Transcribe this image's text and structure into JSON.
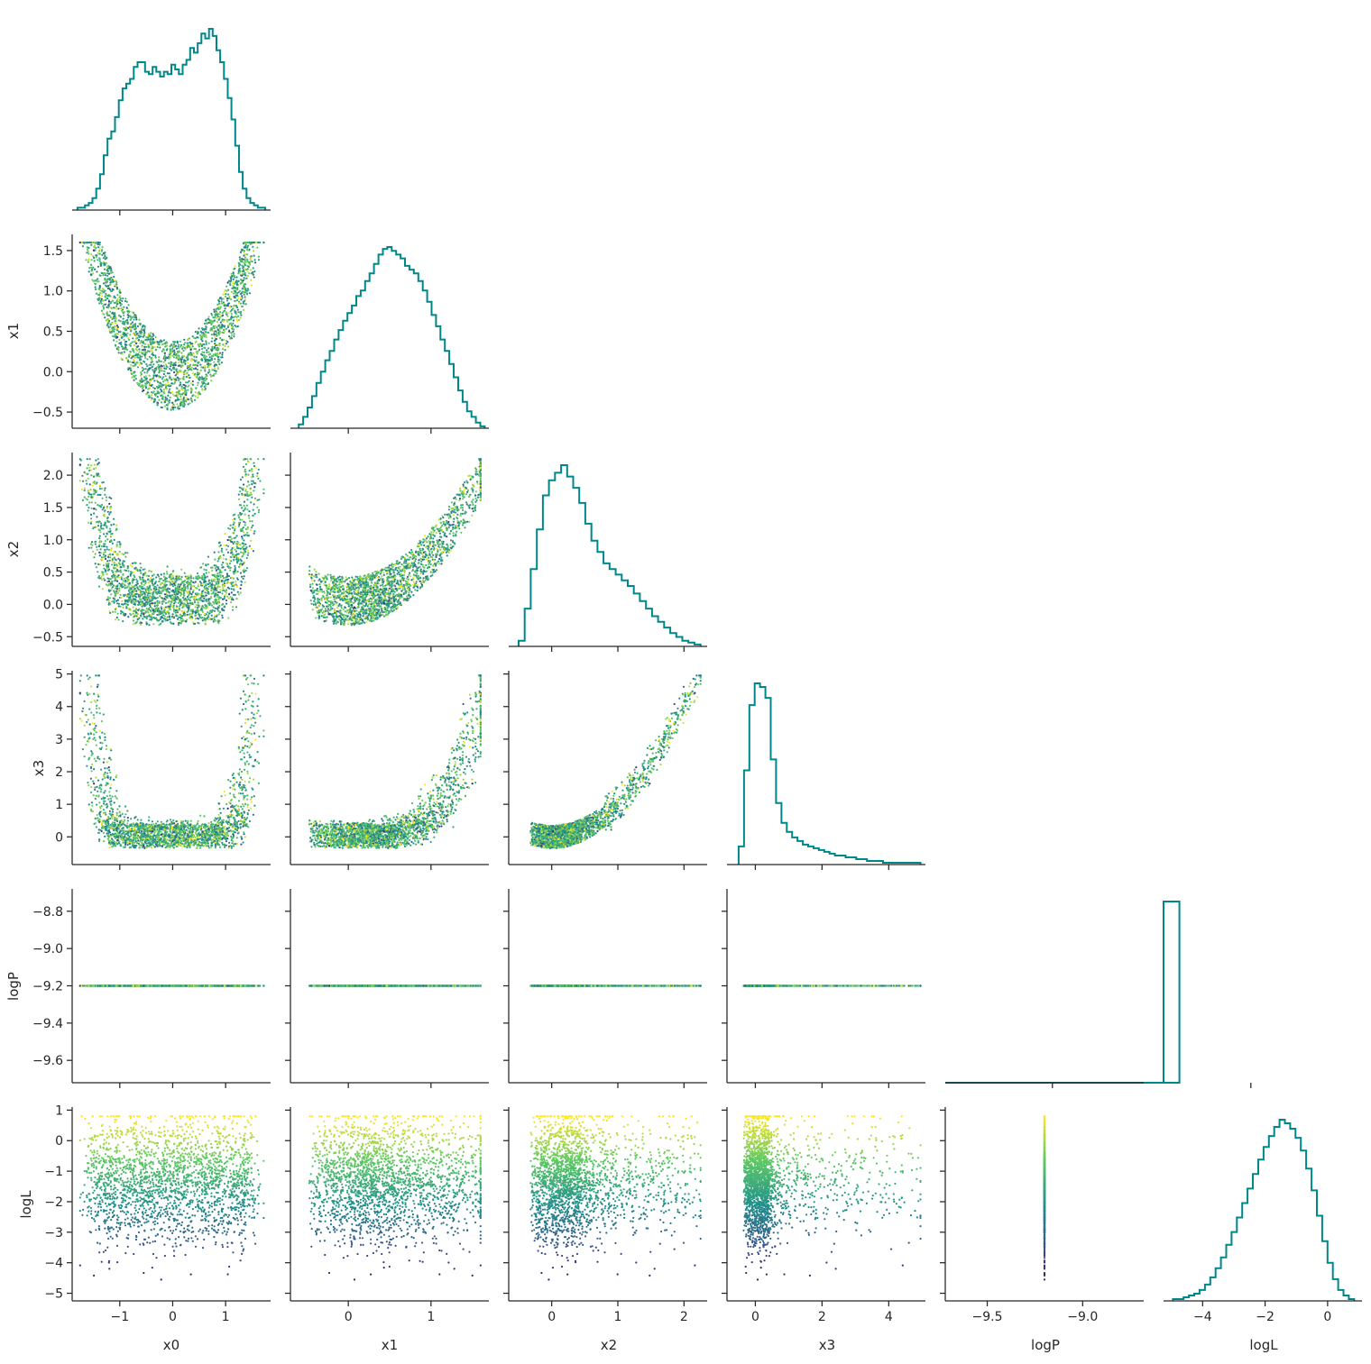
{
  "chart_data": {
    "type": "scatter",
    "title": "",
    "description_kind": "corner plot: diagonal histograms, lower-triangle scatter colored by logL (viridis)",
    "variables": [
      "x0",
      "x1",
      "x2",
      "x3",
      "logP",
      "logL"
    ],
    "axis_labels": {
      "x0": "x0",
      "x1": "x1",
      "x2": "x2",
      "x3": "x3",
      "logP": "logP",
      "logL": "logL"
    },
    "ranges": {
      "x0": [
        -1.9,
        1.85
      ],
      "x1": [
        -0.7,
        1.7
      ],
      "x2": [
        -0.65,
        2.35
      ],
      "x3": [
        -0.85,
        5.1
      ],
      "logP": [
        -9.72,
        -8.68
      ],
      "logL": [
        -5.25,
        1.1
      ]
    },
    "hist_x_ranges": {
      "logP": [
        -9.77,
        -9.27
      ],
      "logL": [
        -5.25,
        1.1
      ]
    },
    "ticks": {
      "x0": [
        -1,
        0,
        1
      ],
      "x1": [
        0,
        1
      ],
      "x2": [
        0,
        1,
        2
      ],
      "x3": [
        0,
        2,
        4
      ],
      "logP_x": [
        -9.5,
        -9.0
      ],
      "logL_x": [
        -4,
        -2,
        0
      ],
      "x1_y": [
        -0.5,
        0.0,
        0.5,
        1.0,
        1.5
      ],
      "x2_y": [
        -0.5,
        0.0,
        0.5,
        1.0,
        1.5,
        2.0
      ],
      "x3_y": [
        0,
        1,
        2,
        3,
        4,
        5
      ],
      "logP_y": [
        -9.6,
        -9.4,
        -9.2,
        -9.0,
        -8.8
      ],
      "logL_y": [
        -5,
        -4,
        -3,
        -2,
        -1,
        0,
        1
      ]
    },
    "tick_labels": {
      "x0": [
        "−1",
        "0",
        "1"
      ],
      "x1": [
        "0",
        "1"
      ],
      "x2": [
        "0",
        "1",
        "2"
      ],
      "x3": [
        "0",
        "2",
        "4"
      ],
      "logP_x": [
        "−9.5",
        "−9.0"
      ],
      "logL_x": [
        "−4",
        "−2",
        "0"
      ],
      "x1_y": [
        "−0.5",
        "0.0",
        "0.5",
        "1.0",
        "1.5"
      ],
      "x2_y": [
        "−0.5",
        "0.0",
        "0.5",
        "1.0",
        "1.5",
        "2.0"
      ],
      "x3_y": [
        "0",
        "1",
        "2",
        "3",
        "4",
        "5"
      ],
      "logP_y": [
        "−9.6",
        "−9.4",
        "−9.2",
        "−9.0",
        "−8.8"
      ],
      "logL_y": [
        "−5",
        "−4",
        "−3",
        "−2",
        "−1",
        "0",
        "1"
      ]
    },
    "histograms": {
      "x0": {
        "bins": [
          -1.8,
          1.75
        ],
        "counts": [
          1,
          1,
          2,
          3,
          5,
          9,
          15,
          23,
          30,
          33,
          39,
          46,
          51,
          53,
          55,
          60,
          62,
          62,
          58,
          57,
          60,
          58,
          56,
          58,
          57,
          61,
          59,
          57,
          61,
          63,
          68,
          66,
          70,
          74,
          72,
          76,
          73,
          67,
          62,
          55,
          47,
          38,
          27,
          16,
          9,
          5,
          3,
          2,
          1,
          1
        ]
      },
      "x1": {
        "bins": [
          -0.6,
          1.65
        ],
        "counts": [
          2,
          6,
          11,
          17,
          24,
          30,
          36,
          41,
          47,
          52,
          57,
          61,
          65,
          70,
          73,
          78,
          82,
          87,
          92,
          95,
          96,
          94,
          92,
          90,
          86,
          84,
          82,
          78,
          73,
          67,
          60,
          54,
          47,
          41,
          34,
          27,
          20,
          14,
          9,
          6,
          3,
          1
        ]
      },
      "x2": {
        "bins": [
          -0.5,
          2.25
        ],
        "counts": [
          3,
          20,
          41,
          62,
          80,
          88,
          92,
          96,
          90,
          84,
          76,
          65,
          56,
          50,
          44,
          41,
          38,
          35,
          32,
          28,
          24,
          20,
          16,
          13,
          10,
          7,
          5,
          3,
          2,
          1
        ]
      },
      "x3": {
        "bins": [
          -0.5,
          4.95
        ],
        "counts": [
          10,
          52,
          88,
          100,
          98,
          92,
          58,
          34,
          23,
          18,
          15,
          13,
          11,
          10,
          9,
          8,
          7,
          6,
          5,
          5,
          4,
          4,
          3,
          3,
          2,
          2,
          2,
          1,
          1,
          1,
          1,
          1,
          1,
          1
        ]
      },
      "logP": {
        "bins": [
          -9.22,
          -9.18
        ],
        "counts": [
          100
        ]
      },
      "logL": {
        "bins": [
          -4.95,
          0.85
        ],
        "counts": [
          1,
          1,
          2,
          3,
          4,
          6,
          9,
          13,
          18,
          24,
          31,
          38,
          46,
          54,
          62,
          70,
          78,
          85,
          91,
          96,
          100,
          98,
          95,
          90,
          83,
          73,
          61,
          47,
          33,
          21,
          12,
          6,
          3,
          1
        ]
      }
    },
    "scatter_note": "logP is constant at −9.2 for all samples; points colored by logL from −5 (dark purple) to 0.8 (yellow)"
  },
  "colors": {
    "hist": "#00878a",
    "axes": "#262626",
    "cmap_low": "#440154",
    "cmap_mid": "#21918c",
    "cmap_high": "#fde725"
  }
}
